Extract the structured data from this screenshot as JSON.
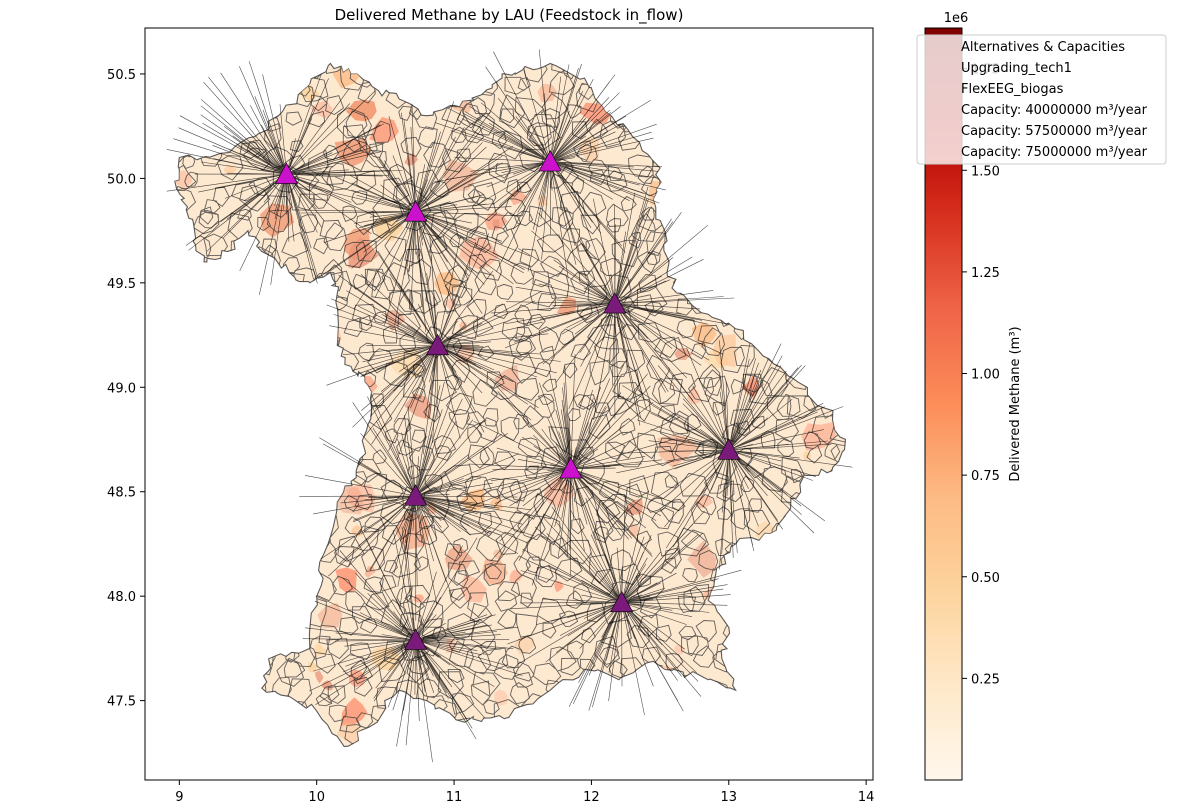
{
  "title": "Delivered Methane by LAU (Feedstock in_flow)",
  "map": {
    "x_ticks": [
      9,
      10,
      11,
      12,
      13,
      14
    ],
    "y_ticks": [
      47.5,
      48.0,
      48.5,
      49.0,
      49.5,
      50.0,
      50.5
    ],
    "x_tick_labels": [
      "9",
      "10",
      "11",
      "12",
      "13",
      "14"
    ],
    "y_tick_labels": [
      "47.5",
      "48.0",
      "48.5",
      "49.0",
      "49.5",
      "50.0",
      "50.5"
    ],
    "x_range": [
      8.75,
      14.05
    ],
    "y_range": [
      47.12,
      50.72
    ],
    "plants": [
      {
        "lon": 9.78,
        "lat": 50.02,
        "technology": "FlexEEG_biogas",
        "color": "#cc11cc"
      },
      {
        "lon": 10.72,
        "lat": 49.84,
        "technology": "FlexEEG_biogas",
        "color": "#cc11cc"
      },
      {
        "lon": 11.7,
        "lat": 50.08,
        "technology": "FlexEEG_biogas",
        "color": "#cc11cc"
      },
      {
        "lon": 12.17,
        "lat": 49.4,
        "technology": "Upgrading_tech1",
        "color": "#7a1a7a"
      },
      {
        "lon": 10.88,
        "lat": 49.2,
        "technology": "Upgrading_tech1",
        "color": "#7a1a7a"
      },
      {
        "lon": 13.0,
        "lat": 48.7,
        "technology": "Upgrading_tech1",
        "color": "#7a1a7a"
      },
      {
        "lon": 11.85,
        "lat": 48.61,
        "technology": "FlexEEG_biogas",
        "color": "#cc11cc"
      },
      {
        "lon": 10.72,
        "lat": 48.48,
        "technology": "Upgrading_tech1",
        "color": "#7a1a7a"
      },
      {
        "lon": 12.22,
        "lat": 47.97,
        "technology": "Upgrading_tech1",
        "color": "#7a1a7a"
      },
      {
        "lon": 10.72,
        "lat": 47.79,
        "technology": "Upgrading_tech1",
        "color": "#7a1a7a"
      }
    ]
  },
  "legend": {
    "title": "Alternatives & Capacities",
    "entries": [
      "Upgrading_tech1",
      "FlexEEG_biogas",
      "Capacity: 40000000 m³/year",
      "Capacity: 57500000 m³/year",
      "Capacity: 75000000 m³/year"
    ]
  },
  "colorbar": {
    "label": "Delivered Methane (m³)",
    "offset_text": "1e6",
    "min": 0,
    "max": 1.85,
    "ticks": [
      0.25,
      0.5,
      0.75,
      1.0,
      1.25,
      1.5,
      1.75
    ],
    "tick_labels": [
      "0.25",
      "0.50",
      "0.75",
      "1.00",
      "1.25",
      "1.50",
      "1.75"
    ],
    "colormap": "OrRd",
    "stops": [
      "#fff7ec",
      "#fee8c8",
      "#fdd49e",
      "#fdbb84",
      "#fc8d59",
      "#ef6548",
      "#d7301f",
      "#b30000",
      "#7f0000"
    ]
  }
}
